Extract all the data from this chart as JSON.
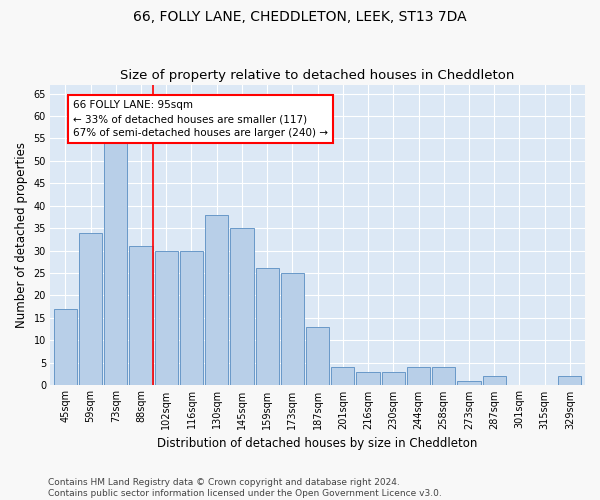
{
  "title": "66, FOLLY LANE, CHEDDLETON, LEEK, ST13 7DA",
  "subtitle": "Size of property relative to detached houses in Cheddleton",
  "xlabel": "Distribution of detached houses by size in Cheddleton",
  "ylabel": "Number of detached properties",
  "categories": [
    "45sqm",
    "59sqm",
    "73sqm",
    "88sqm",
    "102sqm",
    "116sqm",
    "130sqm",
    "145sqm",
    "159sqm",
    "173sqm",
    "187sqm",
    "201sqm",
    "216sqm",
    "230sqm",
    "244sqm",
    "258sqm",
    "273sqm",
    "287sqm",
    "301sqm",
    "315sqm",
    "329sqm"
  ],
  "values": [
    17,
    34,
    57,
    31,
    30,
    30,
    38,
    35,
    26,
    25,
    13,
    4,
    3,
    3,
    4,
    4,
    1,
    2,
    0,
    0,
    2
  ],
  "bar_color": "#b8cfe8",
  "bar_edge_color": "#6898c8",
  "annotation_text": "66 FOLLY LANE: 95sqm\n← 33% of detached houses are smaller (117)\n67% of semi-detached houses are larger (240) →",
  "annotation_box_color": "white",
  "annotation_box_edge_color": "red",
  "vline_pos": 3.48,
  "ylim": [
    0,
    67
  ],
  "yticks": [
    0,
    5,
    10,
    15,
    20,
    25,
    30,
    35,
    40,
    45,
    50,
    55,
    60,
    65
  ],
  "fig_bg_color": "#f8f8f8",
  "plot_bg_color": "#dce8f5",
  "grid_color": "#ffffff",
  "title_fontsize": 10,
  "axis_label_fontsize": 8.5,
  "tick_fontsize": 7,
  "annot_fontsize": 7.5,
  "footnote_fontsize": 6.5,
  "footnote": "Contains HM Land Registry data © Crown copyright and database right 2024.\nContains public sector information licensed under the Open Government Licence v3.0."
}
